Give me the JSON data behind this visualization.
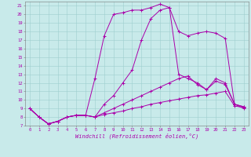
{
  "xlabel": "Windchill (Refroidissement éolien,°C)",
  "background_color": "#c8eaea",
  "line_color": "#aa00aa",
  "xlim": [
    -0.5,
    23.5
  ],
  "ylim": [
    7,
    21.5
  ],
  "xticks": [
    0,
    1,
    2,
    3,
    4,
    5,
    6,
    7,
    8,
    9,
    10,
    11,
    12,
    13,
    14,
    15,
    16,
    17,
    18,
    19,
    20,
    21,
    22,
    23
  ],
  "yticks": [
    7,
    8,
    9,
    10,
    11,
    12,
    13,
    14,
    15,
    16,
    17,
    18,
    19,
    20,
    21
  ],
  "lines": [
    {
      "x": [
        0,
        1,
        2,
        3,
        4,
        5,
        6,
        7,
        8,
        9,
        10,
        11,
        12,
        13,
        14,
        15,
        16,
        17,
        18,
        19,
        20,
        21,
        22,
        23
      ],
      "y": [
        9,
        8,
        7.2,
        7.5,
        8.0,
        8.2,
        8.2,
        12.5,
        17.5,
        20.0,
        20.2,
        20.5,
        20.5,
        20.8,
        21.2,
        20.8,
        13.0,
        12.5,
        12.0,
        11.2,
        12.5,
        12.0,
        9.5,
        9.2
      ]
    },
    {
      "x": [
        0,
        1,
        2,
        3,
        4,
        5,
        6,
        7,
        8,
        9,
        10,
        11,
        12,
        13,
        14,
        15,
        16,
        17,
        18,
        19,
        20,
        21,
        22,
        23
      ],
      "y": [
        9,
        8,
        7.2,
        7.5,
        8.0,
        8.2,
        8.2,
        8.0,
        9.5,
        10.5,
        12.0,
        13.5,
        17.0,
        19.5,
        20.5,
        20.8,
        18.0,
        17.5,
        17.8,
        18.0,
        17.8,
        17.2,
        9.5,
        9.0
      ]
    },
    {
      "x": [
        0,
        1,
        2,
        3,
        4,
        5,
        6,
        7,
        8,
        9,
        10,
        11,
        12,
        13,
        14,
        15,
        16,
        17,
        18,
        19,
        20,
        21,
        22,
        23
      ],
      "y": [
        9,
        8,
        7.2,
        7.5,
        8.0,
        8.2,
        8.2,
        8.0,
        8.5,
        9.0,
        9.5,
        10.0,
        10.5,
        11.0,
        11.5,
        12.0,
        12.5,
        12.8,
        11.8,
        11.2,
        12.2,
        11.8,
        9.5,
        9.2
      ]
    },
    {
      "x": [
        0,
        1,
        2,
        3,
        4,
        5,
        6,
        7,
        8,
        9,
        10,
        11,
        12,
        13,
        14,
        15,
        16,
        17,
        18,
        19,
        20,
        21,
        22,
        23
      ],
      "y": [
        9,
        8,
        7.2,
        7.5,
        8.0,
        8.2,
        8.2,
        8.0,
        8.3,
        8.5,
        8.7,
        9.0,
        9.2,
        9.5,
        9.7,
        9.9,
        10.1,
        10.3,
        10.5,
        10.6,
        10.8,
        11.0,
        9.3,
        9.1
      ]
    }
  ]
}
